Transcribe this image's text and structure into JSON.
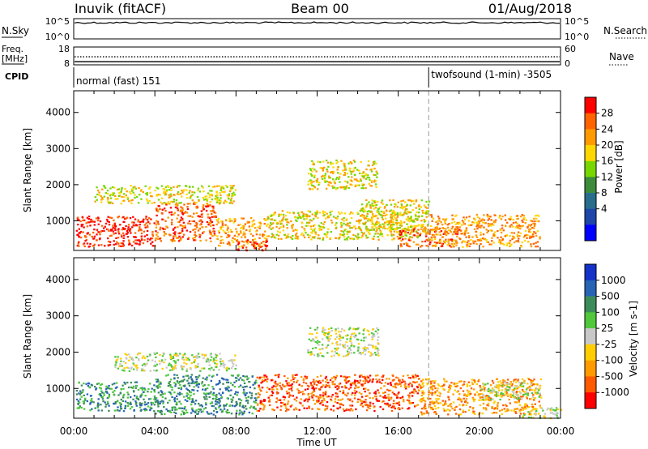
{
  "header": {
    "station": "Inuvik (fitACF)",
    "beam": "Beam 00",
    "date": "01/Aug/2018"
  },
  "top_panels": {
    "nsky": {
      "label": "N.Sky",
      "left_ticks": [
        "10^5",
        "10^0"
      ],
      "right_ticks": [
        "10^5",
        "10^0"
      ],
      "right_label": "N.Search",
      "level": 0.8
    },
    "freq": {
      "label_line1": "Freq.",
      "label_line2": "[MHz]",
      "left_ticks": [
        "18",
        "8"
      ],
      "right_ticks": [
        "60",
        "0"
      ],
      "right_label": "Nave",
      "freq_dotted_level": 0.45,
      "nave_level": 0.18
    },
    "cpid": {
      "label": "CPID",
      "modes": [
        {
          "name": "normal (fast) 151",
          "start_hour": 0
        },
        {
          "name": "twofsound (1-min) -3505",
          "start_hour": 17.5
        }
      ]
    }
  },
  "chart_data": [
    {
      "type": "heatmap",
      "name": "power",
      "ylabel": "Slant Range [km]",
      "xlabel": "",
      "x_ticks": [
        "00:00",
        "04:00",
        "08:00",
        "12:00",
        "16:00",
        "20:00",
        "00:00"
      ],
      "xlim_hours": [
        0,
        24
      ],
      "ylim_km": [
        180,
        4600
      ],
      "y_ticks": [
        1000,
        2000,
        3000,
        4000
      ],
      "colorbar": {
        "label": "Power [dB]",
        "ticks": [
          "28",
          "24",
          "20",
          "16",
          "12",
          "8",
          "4"
        ],
        "colors": [
          "#ff0000",
          "#ff6400",
          "#ff9b00",
          "#ffd700",
          "#78d700",
          "#3c8c3c",
          "#286e8c",
          "#1e46aa",
          "#0000ff"
        ]
      },
      "blobs": [
        {
          "t0": 0.1,
          "t1": 4,
          "r0": 300,
          "r1": 1150,
          "c": 0
        },
        {
          "t0": 4,
          "t1": 7,
          "r0": 450,
          "r1": 1500,
          "c": 1
        },
        {
          "t0": 7,
          "t1": 9.5,
          "r0": 300,
          "r1": 1100,
          "c": 2
        },
        {
          "t0": 1,
          "t1": 8,
          "r0": 1500,
          "r1": 2000,
          "c": 3
        },
        {
          "t0": 9.5,
          "t1": 17,
          "r0": 500,
          "r1": 1300,
          "c": 3
        },
        {
          "t0": 11.5,
          "t1": 15,
          "r0": 1900,
          "r1": 2700,
          "c": 3
        },
        {
          "t0": 14,
          "t1": 17.5,
          "r0": 700,
          "r1": 1600,
          "c": 3
        },
        {
          "t0": 16,
          "t1": 19,
          "r0": 300,
          "r1": 800,
          "c": 1
        },
        {
          "t0": 17.5,
          "t1": 23,
          "r0": 300,
          "r1": 1200,
          "c": 2
        },
        {
          "t0": 8,
          "t1": 9.5,
          "r0": 200,
          "r1": 500,
          "c": 0
        }
      ]
    },
    {
      "type": "heatmap",
      "name": "velocity",
      "ylabel": "Slant Range [km]",
      "xlabel": "Time UT",
      "x_ticks": [
        "00:00",
        "04:00",
        "08:00",
        "12:00",
        "16:00",
        "20:00",
        "00:00"
      ],
      "xlim_hours": [
        0,
        24
      ],
      "ylim_km": [
        180,
        4600
      ],
      "y_ticks": [
        1000,
        2000,
        3000,
        4000
      ],
      "colorbar": {
        "label": "Velocity [m s-1]",
        "ticks": [
          "1000",
          "500",
          "100",
          "25",
          "-25",
          "-100",
          "-500",
          "-1000"
        ],
        "colors": [
          "#1432c8",
          "#2864b4",
          "#3c8c5a",
          "#50c83c",
          "#c8c8c8",
          "#ffcd00",
          "#ff9b00",
          "#ff5a00",
          "#ff0000"
        ]
      },
      "blobs": [
        {
          "t0": 0.1,
          "t1": 4,
          "r0": 400,
          "r1": 1200,
          "c": 2
        },
        {
          "t0": 4,
          "t1": 9,
          "r0": 300,
          "r1": 1400,
          "c": 2
        },
        {
          "t0": 2,
          "t1": 8,
          "r0": 1500,
          "r1": 2000,
          "c": 4
        },
        {
          "t0": 9,
          "t1": 17,
          "r0": 400,
          "r1": 1400,
          "c": 7
        },
        {
          "t0": 11.5,
          "t1": 15,
          "r0": 1900,
          "r1": 2700,
          "c": 4
        },
        {
          "t0": 17,
          "t1": 23,
          "r0": 300,
          "r1": 1300,
          "c": 6
        },
        {
          "t0": 20,
          "t1": 23,
          "r0": 700,
          "r1": 1200,
          "c": 4
        },
        {
          "t0": 22,
          "t1": 24,
          "r0": 200,
          "r1": 500,
          "c": 4
        }
      ]
    }
  ]
}
